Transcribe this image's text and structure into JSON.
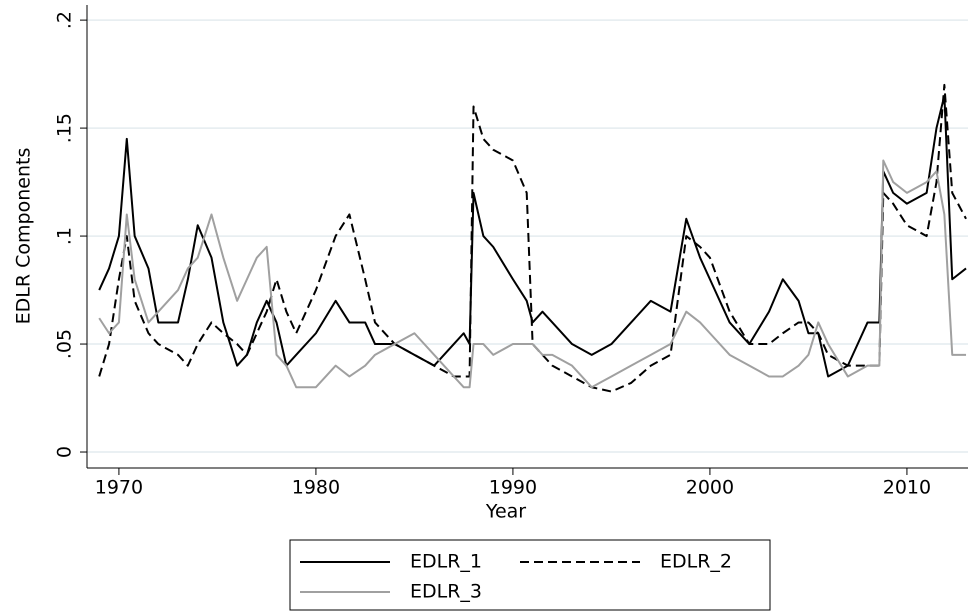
{
  "chart_data": {
    "type": "line",
    "xlabel": "Year",
    "ylabel": "EDLR Components",
    "x": [
      1969,
      1969.5,
      1970,
      1970.4,
      1970.8,
      1971.5,
      1972,
      1973,
      1973.5,
      1974,
      1974.7,
      1975.3,
      1976,
      1976.5,
      1977,
      1977.5,
      1978,
      1978.5,
      1979,
      1980,
      1981,
      1981.7,
      1982.5,
      1983,
      1984,
      1985,
      1986,
      1987,
      1987.5,
      1987.8,
      1988,
      1988.5,
      1989,
      1990,
      1990.7,
      1991,
      1991.5,
      1992,
      1993,
      1994,
      1995,
      1996,
      1997,
      1998,
      1998.8,
      1999.5,
      2000,
      2001,
      2002,
      2003,
      2003.7,
      2004.5,
      2005,
      2005.5,
      2006,
      2007,
      2008,
      2008.6,
      2008.8,
      2009.3,
      2010,
      2011,
      2011.5,
      2011.9,
      2012.3,
      2013
    ],
    "series": [
      {
        "name": "EDLR_1",
        "color": "#000000",
        "style": "solid",
        "values": [
          0.075,
          0.085,
          0.1,
          0.145,
          0.1,
          0.085,
          0.06,
          0.06,
          0.08,
          0.105,
          0.09,
          0.06,
          0.04,
          0.045,
          0.06,
          0.07,
          0.06,
          0.04,
          0.045,
          0.055,
          0.07,
          0.06,
          0.06,
          0.05,
          0.05,
          0.045,
          0.04,
          0.05,
          0.055,
          0.05,
          0.12,
          0.1,
          0.095,
          0.08,
          0.07,
          0.06,
          0.065,
          0.06,
          0.05,
          0.045,
          0.05,
          0.06,
          0.07,
          0.065,
          0.108,
          0.09,
          0.08,
          0.06,
          0.05,
          0.065,
          0.08,
          0.07,
          0.055,
          0.055,
          0.035,
          0.04,
          0.06,
          0.06,
          0.13,
          0.12,
          0.115,
          0.12,
          0.15,
          0.165,
          0.08,
          0.085
        ]
      },
      {
        "name": "EDLR_2",
        "color": "#000000",
        "style": "dashed",
        "values": [
          0.035,
          0.05,
          0.08,
          0.1,
          0.07,
          0.055,
          0.05,
          0.045,
          0.04,
          0.05,
          0.06,
          0.055,
          0.05,
          0.045,
          0.055,
          0.065,
          0.08,
          0.065,
          0.055,
          0.075,
          0.1,
          0.11,
          0.08,
          0.06,
          0.05,
          0.045,
          0.04,
          0.035,
          0.035,
          0.035,
          0.16,
          0.145,
          0.14,
          0.135,
          0.12,
          0.05,
          0.045,
          0.04,
          0.035,
          0.03,
          0.028,
          0.032,
          0.04,
          0.045,
          0.1,
          0.095,
          0.09,
          0.065,
          0.05,
          0.05,
          0.055,
          0.06,
          0.06,
          0.055,
          0.045,
          0.04,
          0.04,
          0.04,
          0.12,
          0.115,
          0.105,
          0.1,
          0.125,
          0.17,
          0.12,
          0.108
        ]
      },
      {
        "name": "EDLR_3",
        "color": "#a0a0a0",
        "style": "solid",
        "values": [
          0.062,
          0.055,
          0.06,
          0.11,
          0.08,
          0.06,
          0.065,
          0.075,
          0.085,
          0.09,
          0.11,
          0.09,
          0.07,
          0.08,
          0.09,
          0.095,
          0.045,
          0.04,
          0.03,
          0.03,
          0.04,
          0.035,
          0.04,
          0.045,
          0.05,
          0.055,
          0.045,
          0.035,
          0.03,
          0.03,
          0.05,
          0.05,
          0.045,
          0.05,
          0.05,
          0.05,
          0.045,
          0.045,
          0.04,
          0.03,
          0.035,
          0.04,
          0.045,
          0.05,
          0.065,
          0.06,
          0.055,
          0.045,
          0.04,
          0.035,
          0.035,
          0.04,
          0.045,
          0.06,
          0.05,
          0.035,
          0.04,
          0.04,
          0.135,
          0.125,
          0.12,
          0.125,
          0.13,
          0.11,
          0.045,
          0.045
        ]
      }
    ],
    "xlim": [
      1968.38,
      2013.1
    ],
    "xticks": [
      1970,
      1980,
      1990,
      2000,
      2010
    ],
    "ylim": [
      -0.0074,
      0.207
    ],
    "yticks": [
      0,
      {
        "value": 0.05,
        "label": ".05"
      },
      {
        "value": 0.1,
        "label": ".1"
      },
      {
        "value": 0.15,
        "label": ".15"
      },
      {
        "value": 0.2,
        "label": ".2"
      }
    ],
    "grid": true,
    "legend": "bottom"
  }
}
